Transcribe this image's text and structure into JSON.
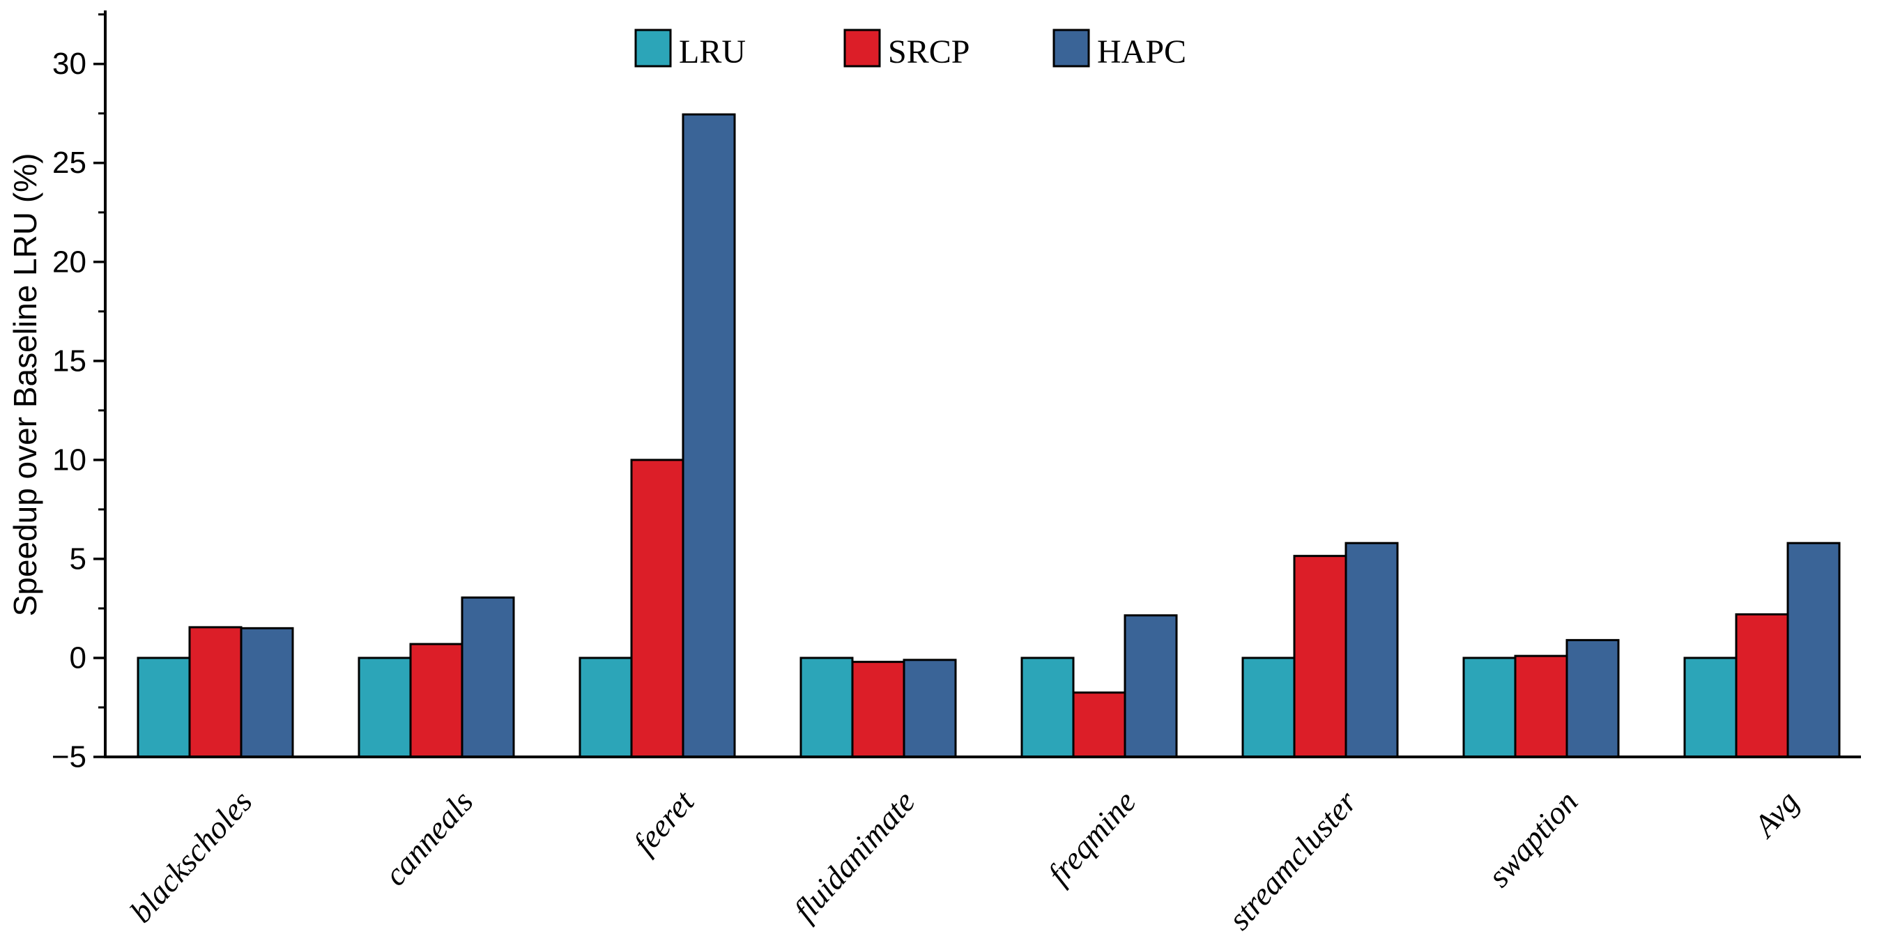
{
  "figure": {
    "background": "#ffffff",
    "axis_color": "#000000",
    "bar_edge_color": "#000000"
  },
  "chart_data": {
    "type": "bar",
    "title": "",
    "xlabel": "",
    "ylabel": "Speedup over Baseline LRU (%)",
    "categories": [
      "blackscholes",
      "canneals",
      "feeret",
      "fluidanimate",
      "freqmine",
      "streamcluster",
      "swaption",
      "Avg"
    ],
    "series": [
      {
        "name": "LRU",
        "color": "#2CA5B8",
        "values": [
          0,
          0,
          0,
          0,
          0,
          0,
          0,
          0
        ]
      },
      {
        "name": "SRCP",
        "color": "#DC1E28",
        "values": [
          1.55,
          0.7,
          10.0,
          -0.2,
          -1.75,
          5.15,
          0.1,
          2.2
        ]
      },
      {
        "name": "HAPC",
        "color": "#3A6497",
        "values": [
          1.5,
          3.05,
          27.45,
          -0.1,
          2.15,
          5.8,
          0.9,
          5.8
        ]
      }
    ],
    "ylim": [
      -5,
      32.7
    ],
    "bar_baseline": -5,
    "grid": false,
    "legend_position": "top-center",
    "yticks_major": [
      -5,
      0,
      5,
      10,
      15,
      20,
      25,
      30
    ],
    "ytick_labels": [
      "−5",
      "0",
      "5",
      "10",
      "15",
      "20",
      "25",
      "30"
    ],
    "yticks_minor": [
      -2.5,
      2.5,
      7.5,
      12.5,
      17.5,
      22.5,
      27.5,
      32.5
    ]
  }
}
